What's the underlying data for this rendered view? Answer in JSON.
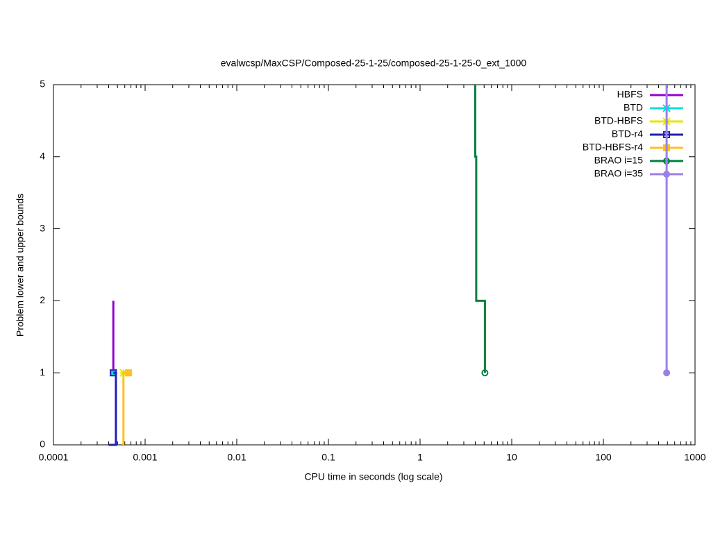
{
  "chart_data": {
    "type": "line",
    "title": "evalwcsp/MaxCSP/Composed-25-1-25/composed-25-1-25-0_ext_1000",
    "x_label": "CPU time in seconds (log scale)",
    "y_label": "Problem lower and upper bounds",
    "x_scale": "log",
    "xlim": [
      0.0001,
      1000
    ],
    "xticks": [
      0.0001,
      0.001,
      0.01,
      0.1,
      1,
      10,
      100,
      1000
    ],
    "ylim": [
      0,
      5
    ],
    "yticks": [
      0,
      1,
      2,
      3,
      4,
      5
    ],
    "legend": "top-right",
    "series": [
      {
        "name": "HBFS",
        "color": "#9400d3",
        "marker": "plus",
        "x": [
          0.00045,
          0.00045
        ],
        "values": [
          2,
          1
        ]
      },
      {
        "name": "BTD",
        "color": "#00e0e0",
        "marker": "star",
        "x": [
          0.00045
        ],
        "values": [
          1
        ]
      },
      {
        "name": "BTD-HBFS",
        "color": "#e6e600",
        "marker": "star",
        "x": [
          0.00058
        ],
        "values": [
          1
        ]
      },
      {
        "name": "BTD-r4",
        "color": "#2020b0",
        "marker": "open-square",
        "x": [
          0.0004,
          0.00048,
          0.00048,
          0.00045
        ],
        "values": [
          0,
          0,
          1,
          1
        ]
      },
      {
        "name": "BTD-HBFS-r4",
        "color": "#ffc020",
        "marker": "filled-square",
        "x": [
          0.00058,
          0.00058,
          0.00066
        ],
        "values": [
          0,
          1,
          1
        ]
      },
      {
        "name": "BRAO i=15",
        "color": "#008040",
        "marker": "open-circle",
        "x": [
          4.0,
          4.0,
          4.1,
          4.1,
          5.1,
          5.1
        ],
        "values": [
          5,
          4,
          4,
          2,
          2,
          1
        ]
      },
      {
        "name": "BRAO i=35",
        "color": "#9a80e8",
        "marker": "filled-circle",
        "x": [
          490,
          490
        ],
        "values": [
          5,
          1
        ]
      }
    ]
  }
}
